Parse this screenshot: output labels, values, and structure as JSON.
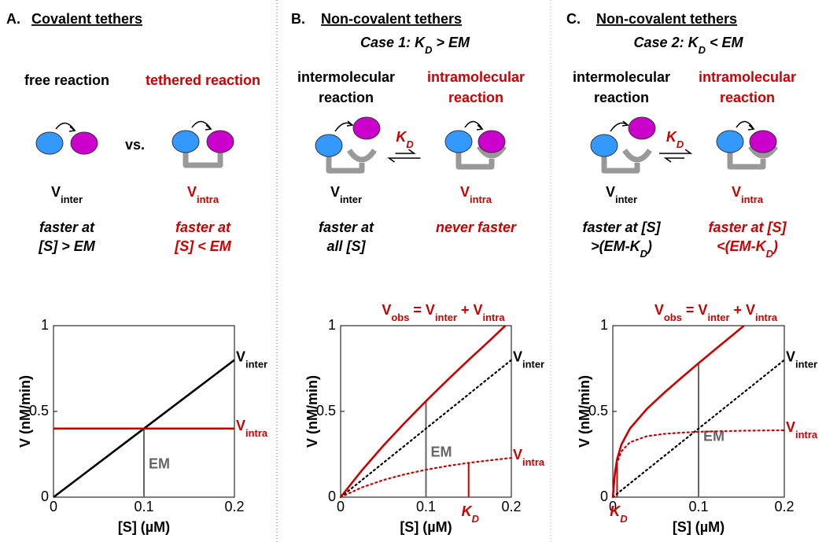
{
  "panels": [
    {
      "label": "A.",
      "title": "Covalent tethers",
      "between": "vs.",
      "left": {
        "caption": [
          "free reaction"
        ],
        "rate": {
          "text": "V",
          "sub": "inter"
        },
        "note": [
          {
            "text": "faster at"
          },
          {
            "text": "[S] > EM"
          }
        ]
      },
      "right": {
        "caption": [
          "tethered reaction"
        ],
        "rate": {
          "text": "V",
          "sub": "intra"
        },
        "note": [
          {
            "text": "faster at"
          },
          {
            "text": "[S] < EM"
          }
        ]
      }
    },
    {
      "label": "B.",
      "title": "Non-covalent tethers",
      "subtitle": {
        "text": "Case 1: K",
        "sub": "D",
        "post": " > EM"
      },
      "equilibrium": {
        "text": "K",
        "sub": "D"
      },
      "left": {
        "caption": [
          "intermolecular",
          "reaction"
        ],
        "rate": {
          "text": "V",
          "sub": "inter"
        },
        "note": [
          {
            "text": "faster at"
          },
          {
            "text": "all [S]"
          }
        ]
      },
      "right": {
        "caption": [
          "intramolecular",
          "reaction"
        ],
        "rate": {
          "text": "V",
          "sub": "intra"
        },
        "note": [
          {
            "text": "never faster"
          }
        ]
      }
    },
    {
      "label": "C.",
      "title": "Non-covalent tethers",
      "subtitle": {
        "text": "Case 2: K",
        "sub": "D",
        "post": " < EM"
      },
      "equilibrium": {
        "text": "K",
        "sub": "D"
      },
      "left": {
        "caption": [
          "intermolecular",
          "reaction"
        ],
        "rate": {
          "text": "V",
          "sub": "inter"
        },
        "note": [
          {
            "text": "faster at [S]"
          },
          {
            "text": ">(EM-K",
            "sub": "D",
            "post": ")"
          }
        ]
      },
      "right": {
        "caption": [
          "intramolecular",
          "reaction"
        ],
        "rate": {
          "text": "V",
          "sub": "intra"
        },
        "note": [
          {
            "text": "faster at [S]"
          },
          {
            "text": "<(EM-K",
            "sub": "D",
            "post": ")"
          }
        ]
      }
    }
  ],
  "chart_data": [
    {
      "type": "line",
      "xlabel": "[S] (µM)",
      "ylabel": "V (nM/min)",
      "xlim": [
        0,
        0.2
      ],
      "ylim": [
        0,
        1
      ],
      "xticks": [
        0,
        0.1,
        0.2
      ],
      "yticks": [
        0,
        0.5,
        1
      ],
      "series": [
        {
          "name": {
            "text": "V",
            "sub": "inter"
          },
          "color": "#000000",
          "style": "solid",
          "x": [
            0,
            0.1,
            0.2
          ],
          "values": [
            0,
            0.4,
            0.8
          ]
        },
        {
          "name": {
            "text": "V",
            "sub": "intra"
          },
          "color": "#cc0000",
          "style": "solid",
          "x": [
            0,
            0.1,
            0.2
          ],
          "values": [
            0.4,
            0.4,
            0.4
          ]
        }
      ],
      "markers": [
        {
          "x": 0.1,
          "y": 0.4,
          "color": "#666666",
          "label": {
            "text": "EM"
          }
        }
      ]
    },
    {
      "type": "line",
      "xlabel": "[S] (µM)",
      "ylabel": "V (nM/min)",
      "xlim": [
        0,
        0.2
      ],
      "ylim": [
        0,
        1
      ],
      "xticks": [
        0,
        0.1,
        0.2
      ],
      "yticks": [
        0,
        0.5,
        1
      ],
      "formula": [
        {
          "text": "V",
          "sub": "obs"
        },
        {
          "text": " = V",
          "sub": "inter"
        },
        {
          "text": " + V",
          "sub": "intra"
        }
      ],
      "series": [
        {
          "color": "#cc0000",
          "style": "solid",
          "x": [
            0,
            0.025,
            0.05,
            0.075,
            0.1,
            0.125,
            0.15,
            0.175,
            0.193
          ],
          "values": [
            0,
            0.157,
            0.3,
            0.433,
            0.56,
            0.682,
            0.8,
            0.915,
            1.0
          ]
        },
        {
          "name": {
            "text": "V",
            "sub": "inter"
          },
          "color": "#000000",
          "style": "dotted",
          "x": [
            0,
            0.025,
            0.05,
            0.075,
            0.1,
            0.125,
            0.15,
            0.175,
            0.2
          ],
          "values": [
            0,
            0.1,
            0.2,
            0.3,
            0.4,
            0.5,
            0.6,
            0.7,
            0.8
          ]
        },
        {
          "name": {
            "text": "V",
            "sub": "intra"
          },
          "color": "#cc0000",
          "style": "dotted",
          "x": [
            0,
            0.025,
            0.05,
            0.075,
            0.1,
            0.125,
            0.15,
            0.175,
            0.2
          ],
          "values": [
            0,
            0.057,
            0.1,
            0.133,
            0.16,
            0.182,
            0.2,
            0.215,
            0.229
          ]
        }
      ],
      "markers": [
        {
          "x": 0.1,
          "y": 0.56,
          "color": "#666666",
          "label": {
            "text": "EM"
          }
        },
        {
          "x": 0.15,
          "y": 0.2,
          "color": "#cc0000",
          "label": {
            "text": "K",
            "sub": "D"
          }
        }
      ]
    },
    {
      "type": "line",
      "xlabel": "[S] (µM)",
      "ylabel": "V (nM/min)",
      "xlim": [
        0,
        0.2
      ],
      "ylim": [
        0,
        1
      ],
      "xticks": [
        0,
        0.1,
        0.2
      ],
      "yticks": [
        0,
        0.5,
        1
      ],
      "formula": [
        {
          "text": "V",
          "sub": "obs"
        },
        {
          "text": " = V",
          "sub": "inter"
        },
        {
          "text": " + V",
          "sub": "intra"
        }
      ],
      "series": [
        {
          "color": "#cc0000",
          "style": "solid",
          "x": [
            0,
            0.0025,
            0.005,
            0.01,
            0.02,
            0.04,
            0.06,
            0.08,
            0.1,
            0.12,
            0.14,
            0.153
          ],
          "values": [
            0,
            0.143,
            0.22,
            0.307,
            0.4,
            0.516,
            0.609,
            0.696,
            0.781,
            0.864,
            0.946,
            1.0
          ]
        },
        {
          "name": {
            "text": "V",
            "sub": "inter"
          },
          "color": "#000000",
          "style": "dotted",
          "x": [
            0,
            0.0025,
            0.005,
            0.01,
            0.02,
            0.04,
            0.06,
            0.08,
            0.1,
            0.12,
            0.14,
            0.16,
            0.18,
            0.2
          ],
          "values": [
            0,
            0.01,
            0.02,
            0.04,
            0.08,
            0.16,
            0.24,
            0.32,
            0.4,
            0.48,
            0.56,
            0.64,
            0.72,
            0.8
          ]
        },
        {
          "name": {
            "text": "V",
            "sub": "intra"
          },
          "color": "#cc0000",
          "style": "dotted",
          "x": [
            0,
            0.0025,
            0.005,
            0.01,
            0.02,
            0.04,
            0.06,
            0.08,
            0.1,
            0.12,
            0.14,
            0.16,
            0.18,
            0.2
          ],
          "values": [
            0,
            0.133,
            0.2,
            0.267,
            0.32,
            0.356,
            0.369,
            0.376,
            0.381,
            0.384,
            0.386,
            0.388,
            0.389,
            0.39
          ]
        }
      ],
      "markers": [
        {
          "x": 0.1,
          "y": 0.78,
          "color": "#666666",
          "label": {
            "text": "EM"
          }
        },
        {
          "x": 0.005,
          "y": 0.2,
          "color": "#cc0000",
          "label": {
            "text": "K",
            "sub": "D"
          }
        }
      ]
    }
  ]
}
